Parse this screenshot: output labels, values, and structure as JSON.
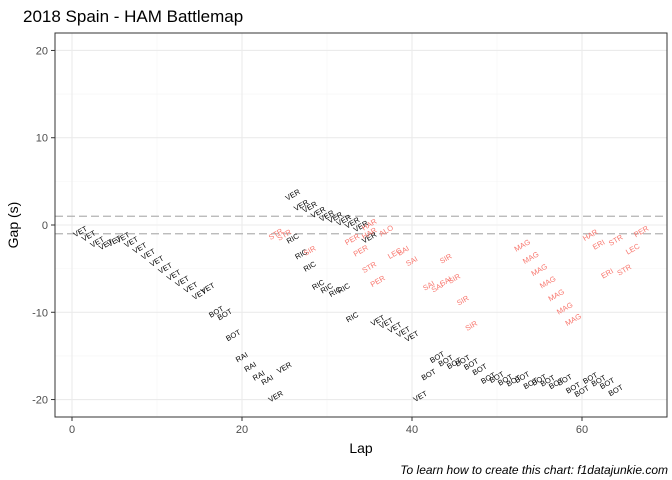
{
  "chart_data": {
    "type": "scatter",
    "title": "2018 Spain - HAM Battlemap",
    "xlabel": "Lap",
    "ylabel": "Gap (s)",
    "caption": "To learn how to create this chart: f1datajunkie.com",
    "xlim": [
      -2,
      70
    ],
    "ylim": [
      -22,
      22
    ],
    "xticks": [
      0,
      20,
      40,
      60
    ],
    "yticks": [
      -20,
      -10,
      0,
      10,
      20
    ],
    "grid": true,
    "legend": "none",
    "reference_lines": [
      1,
      -1
    ],
    "colors": {
      "ahead": "#000000",
      "behind": "#f8766d",
      "reference_line": "#b3b3b3",
      "panel_border": "#333333",
      "grid_major": "#ebebeb",
      "grid_minor": "#f5f5f5"
    },
    "points": [
      {
        "label": "VET",
        "x": 1,
        "y": -0.8,
        "group": "ahead"
      },
      {
        "label": "VET",
        "x": 2,
        "y": -1.3,
        "group": "ahead"
      },
      {
        "label": "VET",
        "x": 3,
        "y": -2.0,
        "group": "ahead"
      },
      {
        "label": "VET",
        "x": 4,
        "y": -2.3,
        "group": "ahead"
      },
      {
        "label": "VET",
        "x": 5,
        "y": -1.9,
        "group": "ahead"
      },
      {
        "label": "VET",
        "x": 6,
        "y": -1.5,
        "group": "ahead"
      },
      {
        "label": "VET",
        "x": 7,
        "y": -2.0,
        "group": "ahead"
      },
      {
        "label": "VET",
        "x": 8,
        "y": -2.7,
        "group": "ahead"
      },
      {
        "label": "VET",
        "x": 9,
        "y": -3.4,
        "group": "ahead"
      },
      {
        "label": "VET",
        "x": 10,
        "y": -4.2,
        "group": "ahead"
      },
      {
        "label": "VET",
        "x": 11,
        "y": -5.0,
        "group": "ahead"
      },
      {
        "label": "VET",
        "x": 12,
        "y": -5.8,
        "group": "ahead"
      },
      {
        "label": "VET",
        "x": 13,
        "y": -6.5,
        "group": "ahead"
      },
      {
        "label": "VET",
        "x": 14,
        "y": -7.2,
        "group": "ahead"
      },
      {
        "label": "VET",
        "x": 15,
        "y": -8.0,
        "group": "ahead"
      },
      {
        "label": "VET",
        "x": 16,
        "y": -7.3,
        "group": "ahead"
      },
      {
        "label": "BOT",
        "x": 17,
        "y": -10.0,
        "group": "ahead"
      },
      {
        "label": "BOT",
        "x": 18,
        "y": -10.3,
        "group": "ahead"
      },
      {
        "label": "BOT",
        "x": 19,
        "y": -12.7,
        "group": "ahead"
      },
      {
        "label": "RAI",
        "x": 20,
        "y": -15.2,
        "group": "ahead"
      },
      {
        "label": "RAI",
        "x": 21,
        "y": -16.3,
        "group": "ahead"
      },
      {
        "label": "RAI",
        "x": 22,
        "y": -17.3,
        "group": "ahead"
      },
      {
        "label": "RAI",
        "x": 23,
        "y": -17.8,
        "group": "ahead"
      },
      {
        "label": "VER",
        "x": 24,
        "y": -19.7,
        "group": "ahead"
      },
      {
        "label": "VER",
        "x": 25,
        "y": -16.4,
        "group": "ahead"
      },
      {
        "label": "STR",
        "x": 24,
        "y": -1.1,
        "group": "behind"
      },
      {
        "label": "STR",
        "x": 25,
        "y": -1.2,
        "group": "behind"
      },
      {
        "label": "VER",
        "x": 26,
        "y": 3.4,
        "group": "ahead"
      },
      {
        "label": "VER",
        "x": 27,
        "y": 2.2,
        "group": "ahead"
      },
      {
        "label": "VER",
        "x": 28,
        "y": 2.0,
        "group": "ahead"
      },
      {
        "label": "VER",
        "x": 29,
        "y": 1.4,
        "group": "ahead"
      },
      {
        "label": "VER",
        "x": 30,
        "y": 1.0,
        "group": "ahead"
      },
      {
        "label": "VER",
        "x": 31,
        "y": 0.8,
        "group": "ahead"
      },
      {
        "label": "VER",
        "x": 32,
        "y": 0.5,
        "group": "ahead"
      },
      {
        "label": "VER",
        "x": 33,
        "y": 0.2,
        "group": "ahead"
      },
      {
        "label": "VER",
        "x": 34,
        "y": -0.2,
        "group": "ahead"
      },
      {
        "label": "VER",
        "x": 35,
        "y": -1.5,
        "group": "ahead"
      },
      {
        "label": "RIC",
        "x": 26,
        "y": -1.6,
        "group": "ahead"
      },
      {
        "label": "RIC",
        "x": 27,
        "y": -3.4,
        "group": "ahead"
      },
      {
        "label": "RIC",
        "x": 28,
        "y": -4.8,
        "group": "ahead"
      },
      {
        "label": "RIC",
        "x": 29,
        "y": -6.9,
        "group": "ahead"
      },
      {
        "label": "RIC",
        "x": 30,
        "y": -7.3,
        "group": "ahead"
      },
      {
        "label": "RIC",
        "x": 31,
        "y": -7.7,
        "group": "ahead"
      },
      {
        "label": "RIC",
        "x": 32,
        "y": -7.3,
        "group": "ahead"
      },
      {
        "label": "RIC",
        "x": 33,
        "y": -10.6,
        "group": "ahead"
      },
      {
        "label": "SIR",
        "x": 28,
        "y": -3.0,
        "group": "behind"
      },
      {
        "label": "PER",
        "x": 33,
        "y": -1.7,
        "group": "behind"
      },
      {
        "label": "PER",
        "x": 34,
        "y": -3.0,
        "group": "behind"
      },
      {
        "label": "HAR",
        "x": 35,
        "y": 0.0,
        "group": "behind"
      },
      {
        "label": "HAR",
        "x": 35,
        "y": -1.0,
        "group": "behind"
      },
      {
        "label": "ALO",
        "x": 37,
        "y": -0.7,
        "group": "behind"
      },
      {
        "label": "STR",
        "x": 35,
        "y": -4.9,
        "group": "behind"
      },
      {
        "label": "PER",
        "x": 36,
        "y": -6.5,
        "group": "behind"
      },
      {
        "label": "LEC",
        "x": 38,
        "y": -3.3,
        "group": "behind"
      },
      {
        "label": "BAI",
        "x": 39,
        "y": -3.0,
        "group": "behind"
      },
      {
        "label": "SAI",
        "x": 40,
        "y": -4.2,
        "group": "behind"
      },
      {
        "label": "VET",
        "x": 36,
        "y": -11.0,
        "group": "ahead"
      },
      {
        "label": "VET",
        "x": 37,
        "y": -11.3,
        "group": "ahead"
      },
      {
        "label": "VET",
        "x": 38,
        "y": -11.8,
        "group": "ahead"
      },
      {
        "label": "VET",
        "x": 39,
        "y": -12.3,
        "group": "ahead"
      },
      {
        "label": "VET",
        "x": 40,
        "y": -12.8,
        "group": "ahead"
      },
      {
        "label": "VET",
        "x": 41,
        "y": -19.7,
        "group": "ahead"
      },
      {
        "label": "SAI",
        "x": 42,
        "y": -7.0,
        "group": "behind"
      },
      {
        "label": "SAI",
        "x": 43,
        "y": -7.2,
        "group": "behind"
      },
      {
        "label": "SAI",
        "x": 44,
        "y": -6.5,
        "group": "behind"
      },
      {
        "label": "SIR",
        "x": 44,
        "y": -3.9,
        "group": "behind"
      },
      {
        "label": "SIR",
        "x": 45,
        "y": -6.2,
        "group": "behind"
      },
      {
        "label": "SIR",
        "x": 46,
        "y": -8.7,
        "group": "behind"
      },
      {
        "label": "SIR",
        "x": 47,
        "y": -11.6,
        "group": "behind"
      },
      {
        "label": "BOT",
        "x": 42,
        "y": -17.2,
        "group": "ahead"
      },
      {
        "label": "BOT",
        "x": 43,
        "y": -15.2,
        "group": "ahead"
      },
      {
        "label": "BOT",
        "x": 44,
        "y": -15.6,
        "group": "ahead"
      },
      {
        "label": "BOT",
        "x": 45,
        "y": -15.9,
        "group": "ahead"
      },
      {
        "label": "BOT",
        "x": 46,
        "y": -15.6,
        "group": "ahead"
      },
      {
        "label": "BOT",
        "x": 47,
        "y": -16.0,
        "group": "ahead"
      },
      {
        "label": "BOT",
        "x": 48,
        "y": -16.6,
        "group": "ahead"
      },
      {
        "label": "BOT",
        "x": 49,
        "y": -17.6,
        "group": "ahead"
      },
      {
        "label": "BOT",
        "x": 50,
        "y": -17.5,
        "group": "ahead"
      },
      {
        "label": "BOT",
        "x": 51,
        "y": -17.8,
        "group": "ahead"
      },
      {
        "label": "BOT",
        "x": 52,
        "y": -17.9,
        "group": "ahead"
      },
      {
        "label": "BOT",
        "x": 53,
        "y": -17.5,
        "group": "ahead"
      },
      {
        "label": "BOT",
        "x": 54,
        "y": -18.2,
        "group": "ahead"
      },
      {
        "label": "BOT",
        "x": 55,
        "y": -17.8,
        "group": "ahead"
      },
      {
        "label": "BOT",
        "x": 56,
        "y": -17.9,
        "group": "ahead"
      },
      {
        "label": "BOT",
        "x": 57,
        "y": -18.2,
        "group": "ahead"
      },
      {
        "label": "BOT",
        "x": 58,
        "y": -17.8,
        "group": "ahead"
      },
      {
        "label": "BOT",
        "x": 59,
        "y": -18.7,
        "group": "ahead"
      },
      {
        "label": "BOT",
        "x": 60,
        "y": -19.1,
        "group": "ahead"
      },
      {
        "label": "BOT",
        "x": 61,
        "y": -17.6,
        "group": "ahead"
      },
      {
        "label": "BOT",
        "x": 62,
        "y": -17.9,
        "group": "ahead"
      },
      {
        "label": "BOT",
        "x": 63,
        "y": -18.2,
        "group": "ahead"
      },
      {
        "label": "BOT",
        "x": 64,
        "y": -19.0,
        "group": "ahead"
      },
      {
        "label": "MAG",
        "x": 53,
        "y": -2.4,
        "group": "behind"
      },
      {
        "label": "MAG",
        "x": 54,
        "y": -3.8,
        "group": "behind"
      },
      {
        "label": "MAG",
        "x": 55,
        "y": -5.2,
        "group": "behind"
      },
      {
        "label": "MAG",
        "x": 56,
        "y": -6.6,
        "group": "behind"
      },
      {
        "label": "MAG",
        "x": 57,
        "y": -8.1,
        "group": "behind"
      },
      {
        "label": "MAG",
        "x": 58,
        "y": -9.6,
        "group": "behind"
      },
      {
        "label": "MAG",
        "x": 59,
        "y": -10.9,
        "group": "behind"
      },
      {
        "label": "HAR",
        "x": 61,
        "y": -1.2,
        "group": "behind"
      },
      {
        "label": "ERI",
        "x": 62,
        "y": -2.3,
        "group": "behind"
      },
      {
        "label": "ERI",
        "x": 63,
        "y": -5.6,
        "group": "behind"
      },
      {
        "label": "STR",
        "x": 64,
        "y": -1.8,
        "group": "behind"
      },
      {
        "label": "STR",
        "x": 65,
        "y": -5.2,
        "group": "behind"
      },
      {
        "label": "LEC",
        "x": 66,
        "y": -2.8,
        "group": "behind"
      },
      {
        "label": "PER",
        "x": 67,
        "y": -0.8,
        "group": "behind"
      }
    ]
  }
}
